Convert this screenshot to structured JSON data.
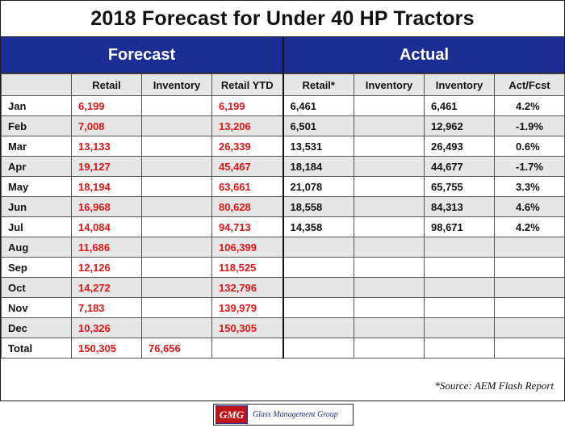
{
  "title": "2018 Forecast for Under 40 HP Tractors",
  "bands": {
    "forecast": "Forecast",
    "actual": "Actual"
  },
  "colors": {
    "band": "#1c2e96",
    "forecast_values": "#e01515",
    "shade": "#e6e6e6"
  },
  "chart_data": {
    "type": "table",
    "title": "2018 Forecast for Under 40 HP Tractors",
    "columns": [
      "",
      "Retail",
      "Inventory",
      "Retail YTD",
      "Retail*",
      "Inventory",
      "Inventory",
      "Act/Fcst"
    ],
    "rows": [
      [
        "Jan",
        "6,199",
        "",
        "6,199",
        "6,461",
        "",
        "6,461",
        "4.2%"
      ],
      [
        "Feb",
        "7,008",
        "",
        "13,206",
        "6,501",
        "",
        "12,962",
        "-1.9%"
      ],
      [
        "Mar",
        "13,133",
        "",
        "26,339",
        "13,531",
        "",
        "26,493",
        "0.6%"
      ],
      [
        "Apr",
        "19,127",
        "",
        "45,467",
        "18,184",
        "",
        "44,677",
        "-1.7%"
      ],
      [
        "May",
        "18,194",
        "",
        "63,661",
        "21,078",
        "",
        "65,755",
        "3.3%"
      ],
      [
        "Jun",
        "16,968",
        "",
        "80,628",
        "18,558",
        "",
        "84,313",
        "4.6%"
      ],
      [
        "Jul",
        "14,084",
        "",
        "94,713",
        "14,358",
        "",
        "98,671",
        "4.2%"
      ],
      [
        "Aug",
        "11,686",
        "",
        "106,399",
        "",
        "",
        "",
        ""
      ],
      [
        "Sep",
        "12,126",
        "",
        "118,525",
        "",
        "",
        "",
        ""
      ],
      [
        "Oct",
        "14,272",
        "",
        "132,796",
        "",
        "",
        "",
        ""
      ],
      [
        "Nov",
        "7,183",
        "",
        "139,979",
        "",
        "",
        "",
        ""
      ],
      [
        "Dec",
        "10,326",
        "",
        "150,305",
        "",
        "",
        "",
        ""
      ],
      [
        "Total",
        "150,305",
        "76,656",
        "",
        "",
        "",
        "",
        ""
      ]
    ]
  },
  "footnote": "*Source: AEM Flash Report",
  "logo": {
    "mark": "GMG",
    "text": "Glass Management Group"
  }
}
